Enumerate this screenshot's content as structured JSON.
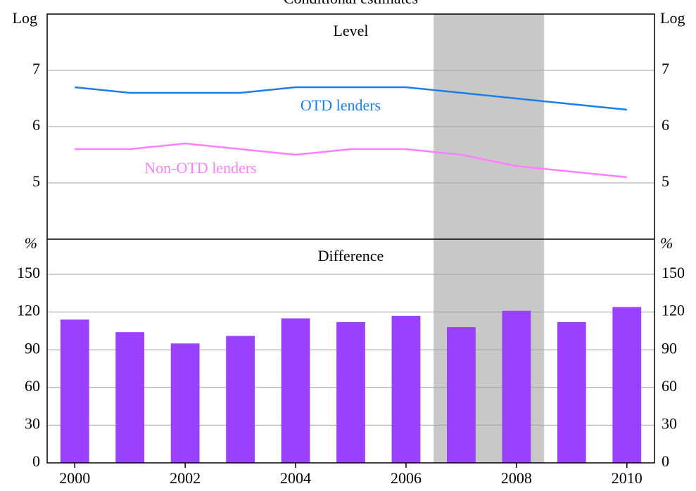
{
  "chart_data": [
    {
      "type": "line",
      "title": "Conditional estimates",
      "panel_title": "Level",
      "y_unit": "Log",
      "x": [
        2000,
        2001,
        2002,
        2003,
        2004,
        2005,
        2006,
        2007,
        2008,
        2009,
        2010
      ],
      "xlim": [
        1999.5,
        2010.5
      ],
      "ylim": [
        4,
        8
      ],
      "yticks": [
        5,
        6,
        7
      ],
      "grid": true,
      "shade": [
        2006.5,
        2008.5
      ],
      "series": [
        {
          "name": "OTD lenders",
          "color": "#1a7fe8",
          "values": [
            6.7,
            6.6,
            6.6,
            6.6,
            6.7,
            6.7,
            6.7,
            6.6,
            6.5,
            6.4,
            6.3
          ]
        },
        {
          "name": "Non-OTD lenders",
          "color": "#ff80ff",
          "values": [
            5.6,
            5.6,
            5.7,
            5.6,
            5.5,
            5.6,
            5.6,
            5.5,
            5.3,
            5.2,
            5.1
          ]
        }
      ]
    },
    {
      "type": "bar",
      "panel_title": "Difference",
      "y_unit": "%",
      "x": [
        2000,
        2001,
        2002,
        2003,
        2004,
        2005,
        2006,
        2007,
        2008,
        2009,
        2010
      ],
      "xlim": [
        1999.5,
        2010.5
      ],
      "xticks": [
        2000,
        2002,
        2004,
        2006,
        2008,
        2010
      ],
      "ylim": [
        0,
        178
      ],
      "yticks": [
        0,
        30,
        60,
        90,
        120,
        150
      ],
      "grid": true,
      "shade": [
        2006.5,
        2008.5
      ],
      "color": "#9a40ff",
      "values": [
        114,
        104,
        95,
        101,
        115,
        112,
        117,
        108,
        121,
        112,
        124
      ]
    }
  ]
}
